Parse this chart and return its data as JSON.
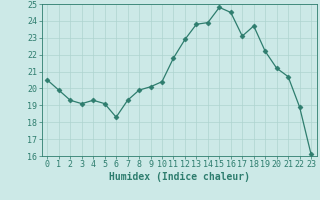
{
  "x": [
    0,
    1,
    2,
    3,
    4,
    5,
    6,
    7,
    8,
    9,
    10,
    11,
    12,
    13,
    14,
    15,
    16,
    17,
    18,
    19,
    20,
    21,
    22,
    23
  ],
  "y": [
    20.5,
    19.9,
    19.3,
    19.1,
    19.3,
    19.1,
    18.3,
    19.3,
    19.9,
    20.1,
    20.4,
    21.8,
    22.9,
    23.8,
    23.9,
    24.8,
    24.5,
    23.1,
    23.7,
    22.2,
    21.2,
    20.7,
    18.9,
    16.1
  ],
  "line_color": "#2e7d6e",
  "marker": "D",
  "marker_size": 2.5,
  "bg_color": "#cce9e7",
  "grid_color": "#aed4d0",
  "xlabel": "Humidex (Indice chaleur)",
  "xlim": [
    -0.5,
    23.5
  ],
  "ylim": [
    16,
    25
  ],
  "yticks": [
    16,
    17,
    18,
    19,
    20,
    21,
    22,
    23,
    24,
    25
  ],
  "xticks": [
    0,
    1,
    2,
    3,
    4,
    5,
    6,
    7,
    8,
    9,
    10,
    11,
    12,
    13,
    14,
    15,
    16,
    17,
    18,
    19,
    20,
    21,
    22,
    23
  ],
  "tick_color": "#2e7d6e",
  "label_fontsize": 6,
  "xlabel_fontsize": 7
}
